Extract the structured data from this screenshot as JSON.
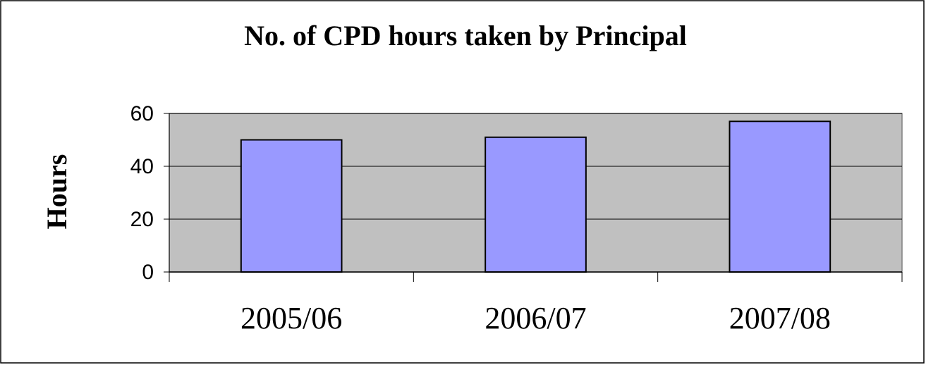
{
  "chart_data": {
    "type": "bar",
    "title": "No. of CPD hours taken by Principal",
    "y_label": "Hours",
    "categories": [
      "2005/06",
      "2006/07",
      "2007/08"
    ],
    "values": [
      50,
      51,
      57
    ],
    "color": "#9999ff",
    "ylim": [
      0,
      60
    ],
    "yticks": [
      0,
      20,
      40,
      60
    ],
    "grid": true
  }
}
